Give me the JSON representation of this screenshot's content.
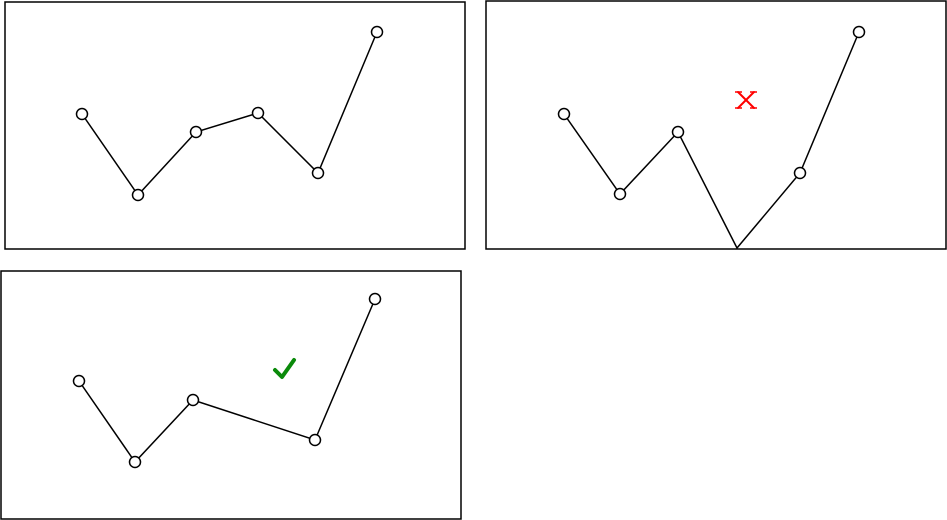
{
  "colors": {
    "line": "#000000",
    "vertex_fill": "#ffffff",
    "wrong": "#ff0000",
    "correct": "#0a8a0a"
  },
  "panels": [
    {
      "name": "original-polyline-panel",
      "mark": null
    },
    {
      "name": "incorrect-simplification-panel",
      "mark": {
        "kind": "cross",
        "icon": "cross-mark-icon",
        "color": "#ff0000"
      }
    },
    {
      "name": "correct-simplification-panel",
      "mark": {
        "kind": "check",
        "icon": "check-mark-icon",
        "color": "#0a8a0a"
      }
    }
  ]
}
